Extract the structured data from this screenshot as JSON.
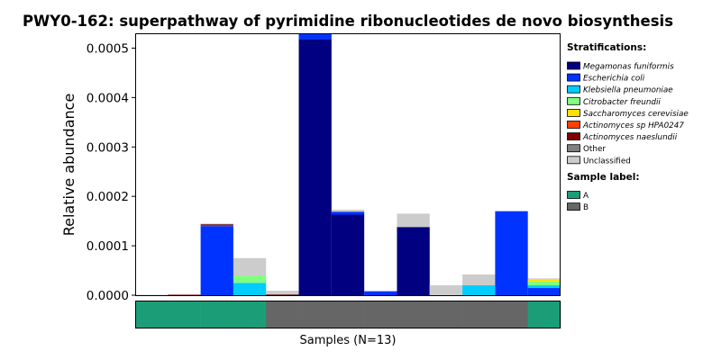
{
  "chart_data": {
    "type": "bar",
    "stacked": true,
    "title": "PWY0-162: superpathway of pyrimidine ribonucleotides de novo biosynthesis",
    "ylabel": "Relative abundance",
    "xlabel": "Samples (N=13)",
    "ylim": [
      0,
      0.00053
    ],
    "yticks": [
      0,
      0.0001,
      0.0002,
      0.0003,
      0.0004,
      0.0005
    ],
    "ytick_labels": [
      "0.0000",
      "0.0001",
      "0.0002",
      "0.0003",
      "0.0004",
      "0.0005"
    ],
    "n_samples": 13,
    "stratification_title": "Stratifications:",
    "series": [
      {
        "name": "Megamonas funiformis",
        "color": "#000080",
        "italic": true,
        "values": [
          0,
          0,
          0,
          0,
          0,
          0.000518,
          0.000163,
          0,
          0.000138,
          0,
          0,
          0,
          0
        ]
      },
      {
        "name": "Escherichia coli",
        "color": "#0033ff",
        "italic": true,
        "values": [
          0,
          0,
          0.00014,
          0,
          0,
          1.3e-05,
          6e-06,
          8e-06,
          0,
          0,
          0,
          0.00017,
          1.5e-05
        ]
      },
      {
        "name": "Klebsiella pneumoniae",
        "color": "#00ccff",
        "italic": true,
        "values": [
          0,
          0,
          0,
          2.5e-05,
          0,
          0,
          0,
          0,
          0,
          0,
          2e-05,
          0,
          5e-06
        ]
      },
      {
        "name": "Citrobacter freundii",
        "color": "#80ff80",
        "italic": true,
        "values": [
          0,
          0,
          0,
          1.5e-05,
          0,
          0,
          0,
          0,
          0,
          0,
          0,
          0,
          8e-06
        ]
      },
      {
        "name": "Saccharomyces cerevisiae",
        "color": "#ffe000",
        "italic": true,
        "values": [
          0,
          0,
          0,
          0,
          0,
          0,
          0,
          0,
          0,
          0,
          0,
          0,
          4e-06
        ]
      },
      {
        "name": "Actinomyces sp HPA0247",
        "color": "#ff4000",
        "italic": true,
        "values": [
          0,
          0,
          1e-06,
          0,
          0,
          0,
          0,
          0,
          0,
          0,
          0,
          0,
          0
        ]
      },
      {
        "name": "Actinomyces naeslundii",
        "color": "#800000",
        "italic": true,
        "values": [
          0,
          1e-06,
          2e-06,
          0,
          1e-06,
          0,
          0,
          0,
          0,
          0,
          0,
          0,
          0
        ]
      },
      {
        "name": "Other",
        "color": "#808080",
        "italic": false,
        "values": [
          0,
          0,
          1e-06,
          0,
          1e-06,
          0,
          0,
          0,
          0,
          0,
          0,
          0,
          0
        ]
      },
      {
        "name": "Unclassified",
        "color": "#cccccc",
        "italic": false,
        "values": [
          1e-06,
          0,
          1e-06,
          3.5e-05,
          7e-06,
          2e-06,
          4e-06,
          0,
          2.7e-05,
          2e-05,
          2.2e-05,
          0,
          2e-06
        ]
      }
    ],
    "sample_label_title": "Sample label:",
    "sample_labels": [
      {
        "name": "A",
        "color": "#1b9e77"
      },
      {
        "name": "B",
        "color": "#666666"
      }
    ],
    "sample_groups": [
      "A",
      "A",
      "A",
      "A",
      "B",
      "B",
      "B",
      "B",
      "B",
      "B",
      "B",
      "B",
      "A"
    ],
    "grid": false,
    "legend_position": "right"
  }
}
